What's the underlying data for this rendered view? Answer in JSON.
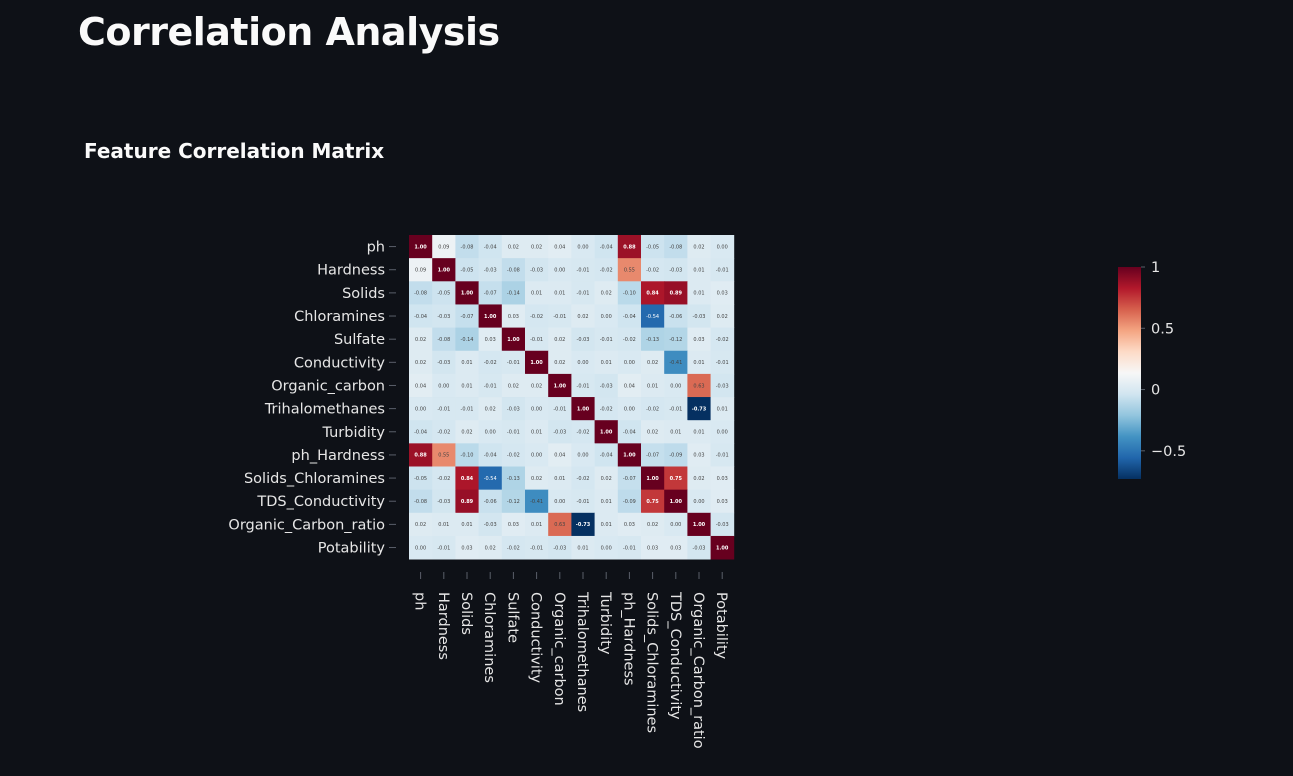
{
  "page": {
    "title": "Correlation Analysis"
  },
  "chart_data": {
    "type": "heatmap",
    "title": "Feature Correlation Matrix",
    "colorscale": "RdBu reversed",
    "zmin": -0.73,
    "zmax": 1,
    "colorbar_ticks": [
      {
        "value": 1,
        "label": "1"
      },
      {
        "value": 0.5,
        "label": "0.5"
      },
      {
        "value": 0,
        "label": "0"
      },
      {
        "value": -0.5,
        "label": "−0.5"
      }
    ],
    "x": [
      "ph",
      "Hardness",
      "Solids",
      "Chloramines",
      "Sulfate",
      "Conductivity",
      "Organic_carbon",
      "Trihalomethanes",
      "Turbidity",
      "ph_Hardness",
      "Solids_Chloramines",
      "TDS_Conductivity",
      "Organic_Carbon_ratio",
      "Potability"
    ],
    "y": [
      "ph",
      "Hardness",
      "Solids",
      "Chloramines",
      "Sulfate",
      "Conductivity",
      "Organic_carbon",
      "Trihalomethanes",
      "Turbidity",
      "ph_Hardness",
      "Solids_Chloramines",
      "TDS_Conductivity",
      "Organic_Carbon_ratio",
      "Potability"
    ],
    "z": [
      [
        1.0,
        0.09,
        -0.08,
        -0.04,
        0.02,
        0.02,
        0.04,
        0.0,
        -0.04,
        0.88,
        -0.05,
        -0.08,
        0.02,
        0.0
      ],
      [
        0.09,
        1.0,
        -0.05,
        -0.03,
        -0.08,
        -0.03,
        0.0,
        -0.01,
        -0.02,
        0.55,
        -0.02,
        -0.03,
        0.01,
        -0.01
      ],
      [
        -0.08,
        -0.05,
        1.0,
        -0.07,
        -0.14,
        0.01,
        0.01,
        -0.01,
        0.02,
        -0.1,
        0.84,
        0.89,
        0.01,
        0.03
      ],
      [
        -0.04,
        -0.03,
        -0.07,
        1.0,
        0.03,
        -0.02,
        -0.01,
        0.02,
        0.0,
        -0.04,
        -0.54,
        -0.06,
        -0.03,
        0.02
      ],
      [
        0.02,
        -0.08,
        -0.14,
        0.03,
        1.0,
        -0.01,
        0.02,
        -0.03,
        -0.01,
        -0.02,
        -0.13,
        -0.12,
        0.03,
        -0.02
      ],
      [
        0.02,
        -0.03,
        0.01,
        -0.02,
        -0.01,
        1.0,
        0.02,
        0.0,
        0.01,
        0.0,
        0.02,
        -0.41,
        0.01,
        -0.01
      ],
      [
        0.04,
        0.0,
        0.01,
        -0.01,
        0.02,
        0.02,
        1.0,
        -0.01,
        -0.03,
        0.04,
        0.01,
        0.0,
        0.63,
        -0.03
      ],
      [
        0.0,
        -0.01,
        -0.01,
        0.02,
        -0.03,
        0.0,
        -0.01,
        1.0,
        -0.02,
        0.0,
        -0.02,
        -0.01,
        -0.73,
        0.01
      ],
      [
        -0.04,
        -0.02,
        0.02,
        0.0,
        -0.01,
        0.01,
        -0.03,
        -0.02,
        1.0,
        -0.04,
        0.02,
        0.01,
        0.01,
        0.0
      ],
      [
        0.88,
        0.55,
        -0.1,
        -0.04,
        -0.02,
        0.0,
        0.04,
        0.0,
        -0.04,
        1.0,
        -0.07,
        -0.09,
        0.03,
        -0.01
      ],
      [
        -0.05,
        -0.02,
        0.84,
        -0.54,
        -0.13,
        0.02,
        0.01,
        -0.02,
        0.02,
        -0.07,
        1.0,
        0.75,
        0.02,
        0.03
      ],
      [
        -0.08,
        -0.03,
        0.89,
        -0.06,
        -0.12,
        -0.41,
        0.0,
        -0.01,
        0.01,
        -0.09,
        0.75,
        1.0,
        0.0,
        0.03
      ],
      [
        0.02,
        0.01,
        0.01,
        -0.03,
        0.03,
        0.01,
        0.63,
        -0.73,
        0.01,
        0.03,
        0.02,
        0.0,
        1.0,
        -0.03
      ],
      [
        0.0,
        -0.01,
        0.03,
        0.02,
        -0.02,
        -0.01,
        -0.03,
        0.01,
        0.0,
        -0.01,
        0.03,
        0.03,
        -0.03,
        1.0
      ]
    ]
  },
  "colors": {
    "background": "#0e1117",
    "text": "#fafafa",
    "label_text": "#e6e6e6"
  }
}
